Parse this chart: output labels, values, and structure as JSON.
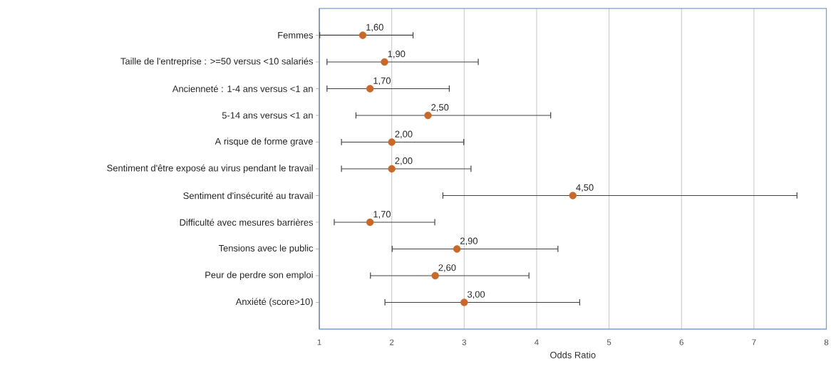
{
  "chart_data": {
    "type": "scatter",
    "orientation": "horizontal",
    "categories": [
      "Femmes",
      "Taille de l'entreprise : >=50 versus <10 salariés",
      "Ancienneté : 1-4 ans versus <1 an",
      "5-14 ans versus <1 an",
      "A risque de forme grave",
      "Sentiment d'être exposé au virus pendant le travail",
      "Sentiment d'insécurité au travail",
      "Difficulté avec mesures barrières",
      "Tensions avec le public",
      "Peur de perdre son emploi",
      "Anxiété (score>10)"
    ],
    "values": [
      1.6,
      1.9,
      1.7,
      2.5,
      2.0,
      2.0,
      4.5,
      1.7,
      2.9,
      2.6,
      3.0
    ],
    "errors": [
      [
        1.0,
        2.3
      ],
      [
        1.1,
        3.2
      ],
      [
        1.1,
        2.8
      ],
      [
        1.5,
        4.2
      ],
      [
        1.3,
        3.0
      ],
      [
        1.3,
        3.1
      ],
      [
        2.7,
        7.6
      ],
      [
        1.2,
        2.6
      ],
      [
        2.0,
        4.3
      ],
      [
        1.7,
        3.9
      ],
      [
        1.9,
        4.6
      ]
    ],
    "value_labels": [
      "1,60",
      "1,90",
      "1,70",
      "2,50",
      "2,00",
      "2,00",
      "4,50",
      "1,70",
      "2,90",
      "2,60",
      "3,00"
    ],
    "color": "#c8692a",
    "xlim": [
      1,
      8
    ],
    "xticks": [
      1,
      2,
      3,
      4,
      5,
      6,
      7,
      8
    ],
    "xlabel": "Odds Ratio",
    "grid": "x"
  }
}
